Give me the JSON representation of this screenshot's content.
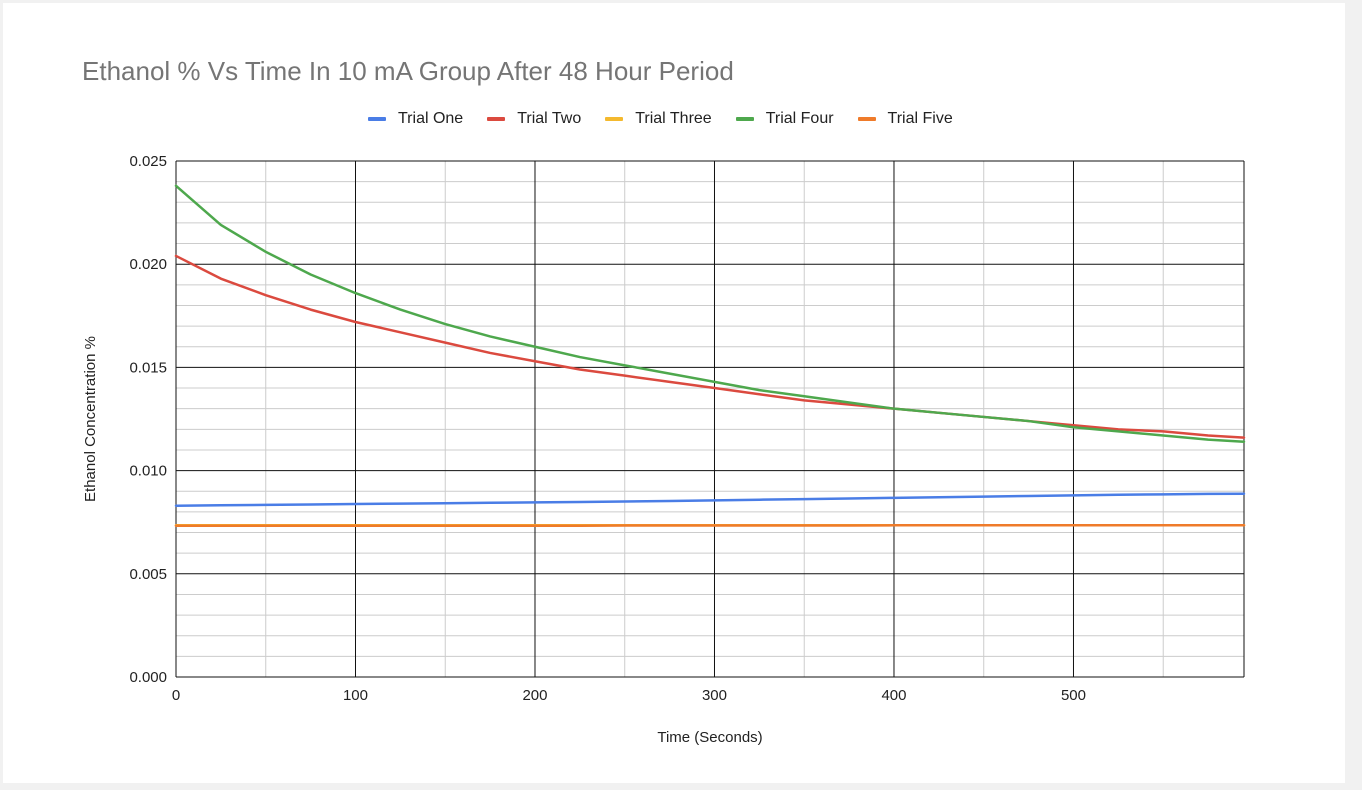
{
  "chart_data": {
    "type": "line",
    "title": "Ethanol % Vs Time In 10 mA Group After 48 Hour Period",
    "xlabel": "Time (Seconds)",
    "ylabel": "Ethanol Concentration %",
    "xlim": [
      0,
      595
    ],
    "ylim": [
      0,
      0.025
    ],
    "x_ticks": [
      "0",
      "100",
      "200",
      "300",
      "400",
      "500"
    ],
    "y_ticks": [
      "0.000",
      "0.005",
      "0.010",
      "0.015",
      "0.020",
      "0.025"
    ],
    "grid": true,
    "legend_position": "top",
    "x": [
      0,
      25,
      50,
      75,
      100,
      125,
      150,
      175,
      200,
      225,
      250,
      275,
      300,
      325,
      350,
      375,
      400,
      425,
      450,
      475,
      500,
      525,
      550,
      575,
      595
    ],
    "series": [
      {
        "name": "Trial One",
        "color": "#4a7de6",
        "values": [
          0.0083,
          0.00832,
          0.00834,
          0.00836,
          0.00838,
          0.0084,
          0.00842,
          0.00844,
          0.00846,
          0.00848,
          0.0085,
          0.00853,
          0.00856,
          0.00859,
          0.00862,
          0.00865,
          0.00868,
          0.00871,
          0.00874,
          0.00877,
          0.0088,
          0.00883,
          0.00885,
          0.00887,
          0.00888
        ]
      },
      {
        "name": "Trial Two",
        "color": "#db4a3f",
        "values": [
          0.0204,
          0.0193,
          0.0185,
          0.0178,
          0.0172,
          0.0167,
          0.0162,
          0.0157,
          0.0153,
          0.0149,
          0.0146,
          0.0143,
          0.014,
          0.0137,
          0.0134,
          0.0132,
          0.013,
          0.0128,
          0.0126,
          0.0124,
          0.0122,
          0.012,
          0.0119,
          0.0117,
          0.0116
        ]
      },
      {
        "name": "Trial Three",
        "color": "#f4b92e",
        "values": [
          0.00735,
          0.00735,
          0.00735,
          0.00735,
          0.00735,
          0.00735,
          0.00735,
          0.00735,
          0.00735,
          0.00735,
          0.00735,
          0.00735,
          0.00735,
          0.00735,
          0.00735,
          0.00735,
          0.00735,
          0.00735,
          0.00735,
          0.00735,
          0.00735,
          0.00735,
          0.00735,
          0.00735,
          0.00735
        ]
      },
      {
        "name": "Trial Four",
        "color": "#4ea84d",
        "values": [
          0.0238,
          0.0219,
          0.0206,
          0.0195,
          0.0186,
          0.0178,
          0.0171,
          0.0165,
          0.016,
          0.0155,
          0.0151,
          0.0147,
          0.0143,
          0.0139,
          0.0136,
          0.0133,
          0.013,
          0.0128,
          0.0126,
          0.0124,
          0.0121,
          0.0119,
          0.0117,
          0.0115,
          0.0114
        ]
      },
      {
        "name": "Trial Five",
        "color": "#ef7b2a",
        "values": [
          0.00733,
          0.00733,
          0.00733,
          0.00733,
          0.00733,
          0.00733,
          0.00733,
          0.00733,
          0.00733,
          0.00733,
          0.00734,
          0.00734,
          0.00734,
          0.00734,
          0.00734,
          0.00734,
          0.00735,
          0.00735,
          0.00735,
          0.00735,
          0.00735,
          0.00735,
          0.00735,
          0.00735,
          0.00735
        ]
      }
    ]
  }
}
